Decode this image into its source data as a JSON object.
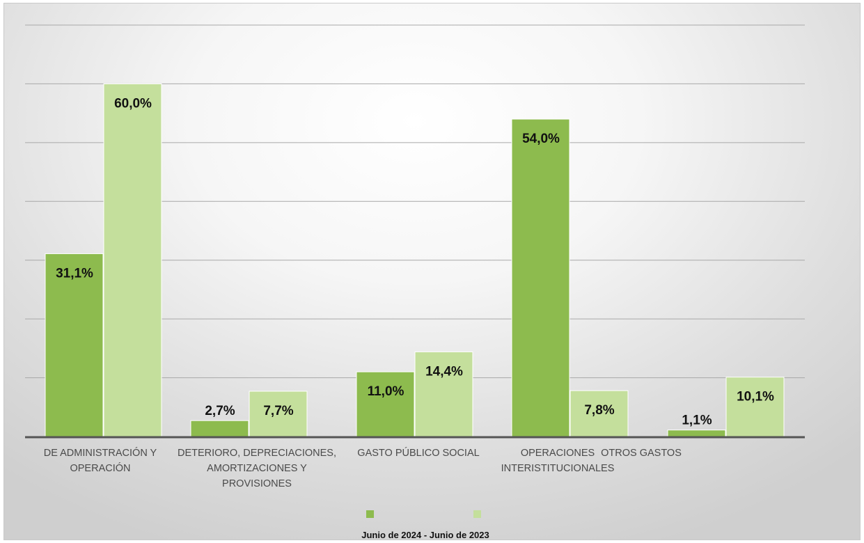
{
  "chart_data": {
    "type": "bar",
    "categories": [
      [
        "DE ADMINISTRACIÓN Y",
        "OPERACIÓN"
      ],
      [
        "DETERIORO, DEPRECIACIONES,",
        "AMORTIZACIONES Y",
        "PROVISIONES"
      ],
      [
        "GASTO PÚBLICO SOCIAL"
      ],
      [
        "OPERACIONES",
        "INTERISTITUCIONALES"
      ],
      [
        "OTROS GASTOS"
      ]
    ],
    "series": [
      {
        "values": [
          31.1,
          2.7,
          11.0,
          54.0,
          1.1
        ],
        "labels": [
          "31,1%",
          "2,7%",
          "11,0%",
          "54,0%",
          "1,1%"
        ],
        "color": "#8dbb4e"
      },
      {
        "values": [
          60.0,
          7.7,
          14.4,
          7.8,
          10.1
        ],
        "labels": [
          "60,0%",
          "7,7%",
          "14,4%",
          "7,8%",
          "10,1%"
        ],
        "color": "#c4df9c"
      }
    ],
    "legend_caption": "Junio de 2024 - Junio de 2023",
    "legend_position": "bottom",
    "ylim": [
      0,
      70
    ],
    "grid": true
  }
}
